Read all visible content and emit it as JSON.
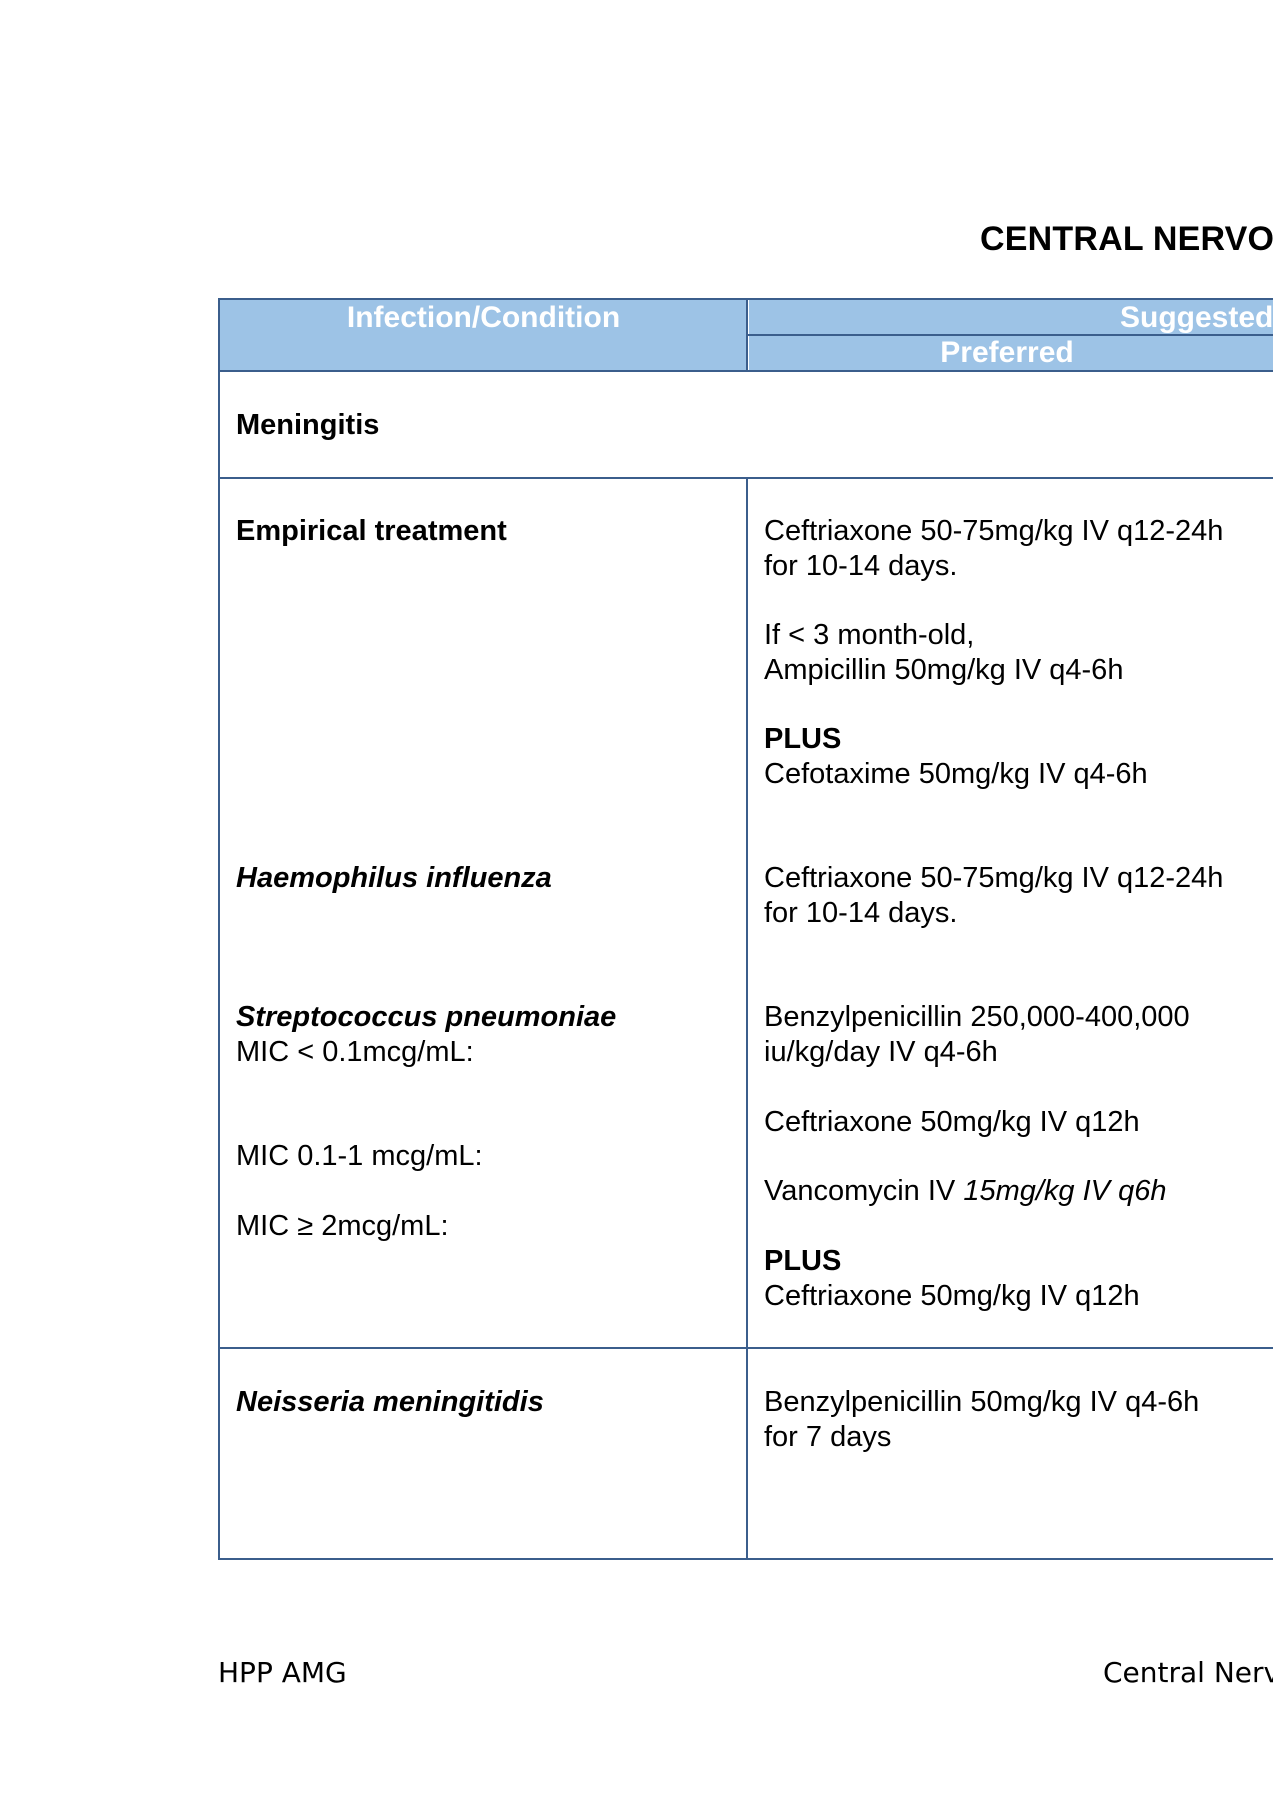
{
  "page_title": "CENTRAL NERVO",
  "table": {
    "header": {
      "col1": "Infection/Condition",
      "col2_group": "Suggested",
      "col2_sub": "Preferred"
    },
    "section": "Meningitis",
    "rows": {
      "empirical": {
        "condition": "Empirical treatment",
        "t1": "Ceftriaxone 50-75mg/kg IV q12-24h",
        "t2": "for 10-14 days.",
        "t3": "If < 3 month-old,",
        "t4": "Ampicillin 50mg/kg IV q4-6h",
        "t5": "PLUS",
        "t6": "Cefotaxime 50mg/kg IV q4-6h"
      },
      "haemophilus": {
        "condition": "Haemophilus influenza",
        "t1": "Ceftriaxone 50-75mg/kg IV q12-24h",
        "t2": "for 10-14 days."
      },
      "strep": {
        "condition": "Streptococcus pneumoniae",
        "mic1": "MIC < 0.1mcg/mL:",
        "mic2": "MIC 0.1-1 mcg/mL:",
        "mic3": "MIC ≥ 2mcg/mL:",
        "t1": "Benzylpenicillin 250,000-400,000",
        "t2": "iu/kg/day IV q4-6h",
        "t3": "Ceftriaxone 50mg/kg IV q12h",
        "t4a": "Vancomycin IV ",
        "t4b": "15mg/kg IV q6h",
        "t5": "PLUS",
        "t6": "Ceftriaxone 50mg/kg IV q12h"
      },
      "neisseria": {
        "condition": "Neisseria meningitidis",
        "t1": "Benzylpenicillin 50mg/kg IV q4-6h",
        "t2": "for 7 days"
      }
    }
  },
  "footer": {
    "left": "HPP AMG",
    "right": "Central Nerv"
  }
}
